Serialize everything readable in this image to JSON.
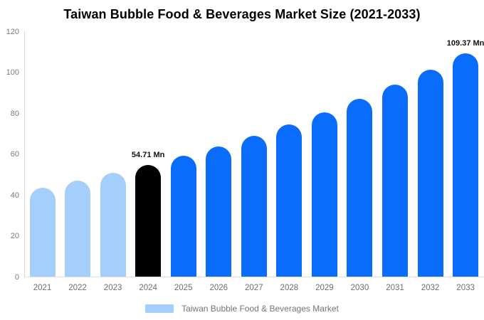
{
  "title": "Taiwan Bubble Food & Beverages Market Size (2021-2033)",
  "colors": {
    "past": "#a4cefb",
    "highlight": "#000000",
    "forecast": "#0a6cfa",
    "axis_line": "#d9d9d9",
    "axis_text": "#6e6e6e"
  },
  "legend": {
    "label": "Taiwan Bubble Food & Beverages Market",
    "swatch_color": "#a4cefb"
  },
  "chart_data": {
    "type": "bar",
    "title": "Taiwan Bubble Food & Beverages Market Size (2021-2033)",
    "categories": [
      "2021",
      "2022",
      "2023",
      "2024",
      "2025",
      "2026",
      "2027",
      "2028",
      "2029",
      "2030",
      "2031",
      "2032",
      "2033"
    ],
    "values": [
      43.42,
      46.9,
      50.65,
      54.71,
      59.09,
      63.82,
      68.93,
      74.45,
      80.41,
      86.84,
      93.8,
      101.31,
      109.37
    ],
    "unit": "Mn",
    "bar_roles": [
      "past",
      "past",
      "past",
      "highlight",
      "forecast",
      "forecast",
      "forecast",
      "forecast",
      "forecast",
      "forecast",
      "forecast",
      "forecast",
      "forecast"
    ],
    "data_labels": [
      {
        "index": 3,
        "text": "54.71 Mn"
      },
      {
        "index": 12,
        "text": "109.37 Mn"
      }
    ],
    "xlabel": "",
    "ylabel": "",
    "ylim": [
      0,
      120
    ],
    "yticks": [
      0,
      20,
      40,
      60,
      80,
      100,
      120
    ],
    "grid": false,
    "legend_position": "bottom",
    "legend_entries": [
      "Taiwan Bubble Food & Beverages Market"
    ]
  }
}
